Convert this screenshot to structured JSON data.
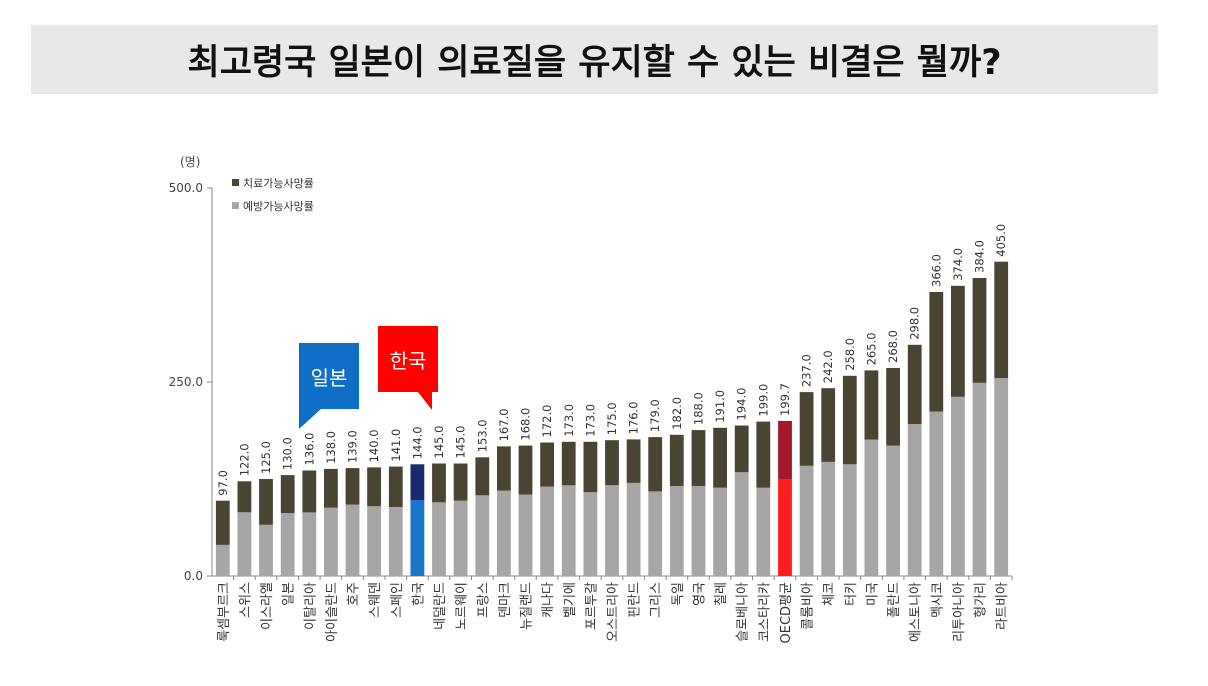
{
  "page_title": "최고령국 일본이 의료질을 유지할 수 있는 비결은 뭘까?",
  "callouts": {
    "japan": "일본",
    "korea": "한국"
  },
  "colors": {
    "treatable": "#4a4533",
    "preventable": "#a6a6a6",
    "korea_treatable": "#1a2a6e",
    "korea_preventable": "#1976c8",
    "oecd_treatable": "#a3182a",
    "oecd_preventable": "#ff1e1e"
  },
  "chart_data": {
    "type": "bar",
    "stacked": true,
    "y_unit": "(명)",
    "ylim": [
      0,
      500
    ],
    "yticks": [
      "0.0",
      "250.0",
      "500.0"
    ],
    "legend": [
      "치료가능사망률",
      "예방가능사망률"
    ],
    "categories": [
      "룩셈부르크",
      "스위스",
      "이스라엘",
      "일본",
      "이탈리아",
      "아이슬란드",
      "호주",
      "스웨덴",
      "스페인",
      "한국",
      "네덜란드",
      "노르웨이",
      "프랑스",
      "덴마크",
      "뉴질랜드",
      "캐나다",
      "벨기에",
      "포르투갈",
      "오스트리아",
      "핀란드",
      "그리스",
      "독일",
      "영국",
      "칠레",
      "슬로베니아",
      "코스타리카",
      "OECD평균",
      "콜롬비아",
      "체코",
      "터키",
      "미국",
      "폴란드",
      "에스토니아",
      "멕시코",
      "리투아니아",
      "헝가리",
      "라트비아"
    ],
    "totals": [
      97,
      122,
      125,
      130,
      136,
      138,
      139,
      140,
      141,
      144,
      145,
      145,
      153,
      167,
      168,
      172,
      173,
      173,
      175,
      176,
      179,
      182,
      188,
      191,
      194,
      199,
      199.7,
      237,
      242,
      258,
      265,
      268,
      298,
      366,
      374,
      384,
      405
    ],
    "total_labels": [
      "97.0",
      "122.0",
      "125.0",
      "130.0",
      "136.0",
      "138.0",
      "139.0",
      "140.0",
      "141.0",
      "144.0",
      "145.0",
      "145.0",
      "153.0",
      "167.0",
      "168.0",
      "172.0",
      "173.0",
      "173.0",
      "175.0",
      "176.0",
      "179.0",
      "182.0",
      "188.0",
      "191.0",
      "194.0",
      "199.0",
      "199.7",
      "237.0",
      "242.0",
      "258.0",
      "265.0",
      "268.0",
      "298.0",
      "366.0",
      "374.0",
      "384.0",
      "405.0"
    ],
    "series": [
      {
        "name": "예방가능사망률",
        "values": [
          40,
          82,
          66,
          81,
          82,
          88,
          92,
          90,
          89,
          98,
          95,
          97,
          104,
          110,
          105,
          115,
          117,
          108,
          117,
          120,
          109,
          116,
          116,
          114,
          134,
          114,
          125,
          142,
          147,
          144,
          176,
          168,
          196,
          212,
          231,
          249,
          255
        ]
      },
      {
        "name": "치료가능사망률",
        "values": [
          57,
          40,
          59,
          49,
          54,
          50,
          47,
          50,
          52,
          46,
          50,
          48,
          49,
          57,
          63,
          57,
          56,
          65,
          58,
          56,
          70,
          66,
          72,
          77,
          60,
          85,
          74.7,
          95,
          95,
          114,
          89,
          100,
          102,
          154,
          143,
          135,
          150
        ]
      }
    ],
    "highlight": {
      "korea_index": 9,
      "oecd_index": 26
    }
  }
}
